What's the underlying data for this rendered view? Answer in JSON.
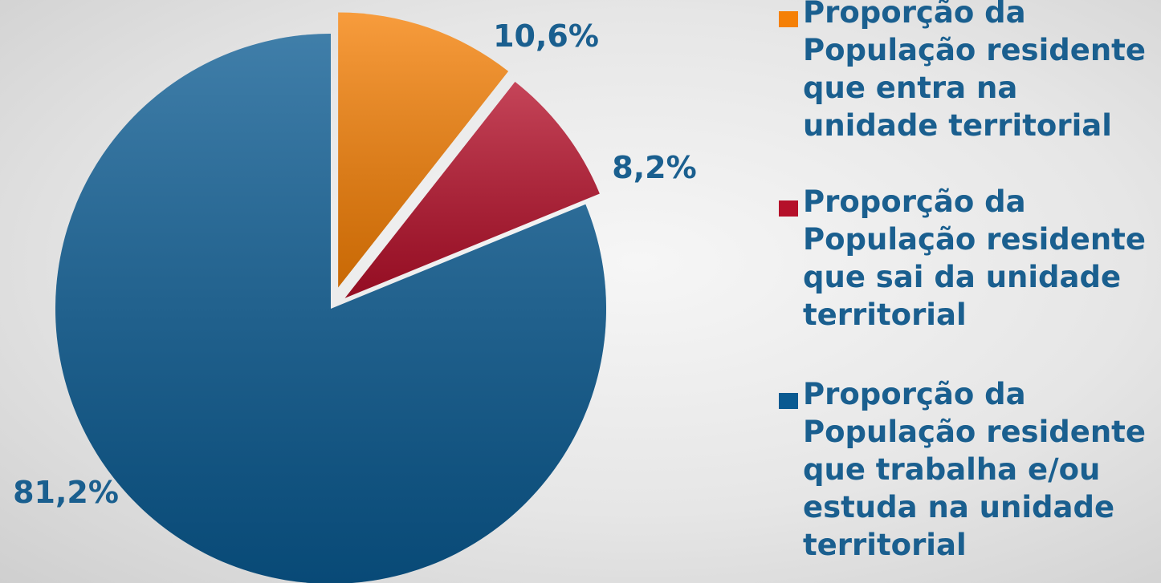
{
  "chart_data": {
    "type": "pie",
    "series": [
      {
        "name": "Proporção da População residente que entra na unidade territorial",
        "color": "#f58006",
        "values": [
          10.6
        ],
        "value_labels": [
          "10,6%"
        ]
      },
      {
        "name": "Proporção da População residente que sai da unidade territorial",
        "color": "#b5102a",
        "values": [
          8.2
        ],
        "value_labels": [
          "8,2%"
        ]
      },
      {
        "name": "Proporção da População residente que trabalha e/ou estuda na unidade territorial",
        "color": "#0a5a91",
        "values": [
          81.2
        ],
        "value_labels": [
          "81,2%"
        ]
      }
    ],
    "legend": "right"
  }
}
